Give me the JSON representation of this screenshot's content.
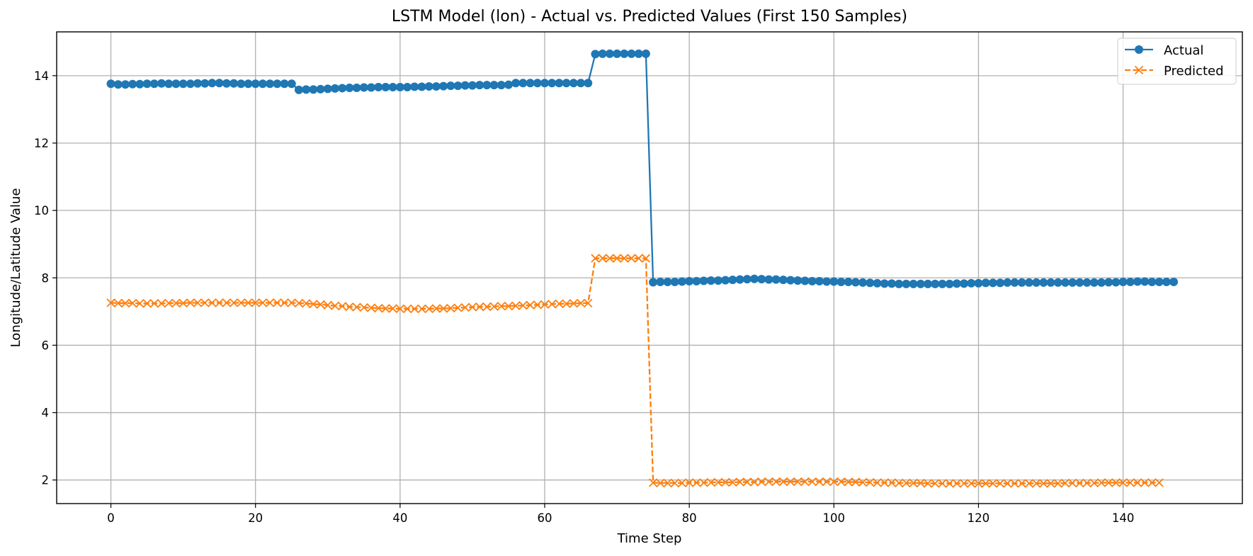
{
  "chart_data": {
    "type": "line",
    "title": "LSTM Model (lon) - Actual vs. Predicted Values (First 150 Samples)",
    "xlabel": "Time Step",
    "ylabel": "Longitude/Latitude Value",
    "xlim": [
      -7.5,
      156.5
    ],
    "ylim": [
      1.3,
      15.3
    ],
    "xticks": [
      0,
      20,
      40,
      60,
      80,
      100,
      120,
      140
    ],
    "yticks": [
      2,
      4,
      6,
      8,
      10,
      12,
      14
    ],
    "grid": true,
    "legend_position": "top-right",
    "series": [
      {
        "name": "Actual",
        "color": "#1f77b4",
        "linestyle": "solid",
        "marker": "circle",
        "values": [
          13.76,
          13.74,
          13.74,
          13.75,
          13.75,
          13.76,
          13.76,
          13.77,
          13.76,
          13.76,
          13.76,
          13.76,
          13.77,
          13.77,
          13.78,
          13.78,
          13.77,
          13.77,
          13.76,
          13.76,
          13.76,
          13.76,
          13.76,
          13.76,
          13.76,
          13.76,
          13.58,
          13.59,
          13.59,
          13.6,
          13.61,
          13.62,
          13.63,
          13.64,
          13.64,
          13.65,
          13.65,
          13.66,
          13.66,
          13.66,
          13.66,
          13.66,
          13.67,
          13.67,
          13.68,
          13.68,
          13.69,
          13.7,
          13.7,
          13.71,
          13.71,
          13.72,
          13.72,
          13.72,
          13.72,
          13.73,
          13.78,
          13.78,
          13.78,
          13.78,
          13.78,
          13.78,
          13.78,
          13.78,
          13.78,
          13.78,
          13.78,
          14.64,
          14.65,
          14.65,
          14.65,
          14.65,
          14.65,
          14.65,
          14.65,
          7.87,
          7.88,
          7.88,
          7.88,
          7.89,
          7.9,
          7.9,
          7.91,
          7.92,
          7.92,
          7.93,
          7.94,
          7.95,
          7.96,
          7.97,
          7.96,
          7.95,
          7.95,
          7.94,
          7.93,
          7.92,
          7.91,
          7.9,
          7.9,
          7.89,
          7.89,
          7.88,
          7.88,
          7.87,
          7.86,
          7.85,
          7.84,
          7.83,
          7.83,
          7.82,
          7.82,
          7.82,
          7.82,
          7.82,
          7.82,
          7.82,
          7.82,
          7.83,
          7.83,
          7.84,
          7.84,
          7.85,
          7.85,
          7.85,
          7.86,
          7.86,
          7.86,
          7.86,
          7.86,
          7.86,
          7.86,
          7.86,
          7.86,
          7.86,
          7.86,
          7.86,
          7.86,
          7.86,
          7.87,
          7.87,
          7.88,
          7.88,
          7.89,
          7.89,
          7.88,
          7.88,
          7.88,
          7.88
        ]
      },
      {
        "name": "Predicted",
        "color": "#ff7f0e",
        "linestyle": "dashed",
        "marker": "x",
        "values": [
          7.26,
          7.25,
          7.25,
          7.25,
          7.24,
          7.24,
          7.24,
          7.24,
          7.25,
          7.25,
          7.25,
          7.26,
          7.26,
          7.26,
          7.26,
          7.26,
          7.26,
          7.26,
          7.26,
          7.26,
          7.26,
          7.26,
          7.26,
          7.26,
          7.26,
          7.26,
          7.25,
          7.24,
          7.22,
          7.21,
          7.19,
          7.17,
          7.16,
          7.14,
          7.13,
          7.12,
          7.11,
          7.1,
          7.09,
          7.09,
          7.08,
          7.08,
          7.08,
          7.08,
          7.08,
          7.09,
          7.09,
          7.1,
          7.11,
          7.12,
          7.13,
          7.14,
          7.14,
          7.15,
          7.16,
          7.16,
          7.17,
          7.18,
          7.19,
          7.2,
          7.21,
          7.22,
          7.23,
          7.23,
          7.24,
          7.25,
          7.25,
          8.58,
          8.58,
          8.58,
          8.58,
          8.58,
          8.58,
          8.58,
          8.58,
          1.92,
          1.91,
          1.91,
          1.91,
          1.91,
          1.92,
          1.92,
          1.92,
          1.93,
          1.93,
          1.93,
          1.93,
          1.94,
          1.94,
          1.94,
          1.95,
          1.95,
          1.95,
          1.95,
          1.95,
          1.95,
          1.95,
          1.95,
          1.95,
          1.95,
          1.95,
          1.95,
          1.94,
          1.94,
          1.93,
          1.93,
          1.92,
          1.92,
          1.92,
          1.91,
          1.91,
          1.91,
          1.91,
          1.9,
          1.9,
          1.9,
          1.9,
          1.9,
          1.9,
          1.9,
          1.9,
          1.9,
          1.9,
          1.9,
          1.9,
          1.9,
          1.9,
          1.9,
          1.9,
          1.9,
          1.9,
          1.9,
          1.91,
          1.91,
          1.91,
          1.91,
          1.91,
          1.92,
          1.92,
          1.92,
          1.92,
          1.92,
          1.92,
          1.92,
          1.92,
          1.92
        ]
      }
    ]
  }
}
